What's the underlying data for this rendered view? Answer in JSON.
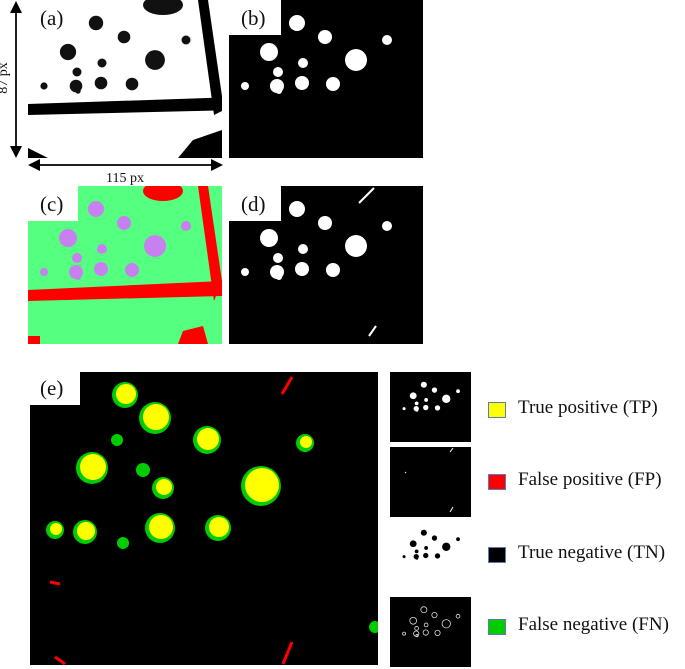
{
  "panels": {
    "a": {
      "label": "(a)"
    },
    "b": {
      "label": "(b)"
    },
    "c": {
      "label": "(c)"
    },
    "d": {
      "label": "(d)"
    },
    "e": {
      "label": "(e)"
    }
  },
  "dimensions": {
    "height": "87 px",
    "width": "115 px"
  },
  "colors": {
    "tp": "#ffff00",
    "fp": "#ff0000",
    "tn": "#000000",
    "fn": "#00cc00",
    "water_class": "#c87ff0",
    "land_class": "#55ff80"
  },
  "legend": [
    {
      "label": "True positive (TP)",
      "color": "#ffff00"
    },
    {
      "label": "False positive (FP)",
      "color": "#ff0000"
    },
    {
      "label": "True negative (TN)",
      "color": "#000000"
    },
    {
      "label": "False negative (FN)",
      "color": "#00cc00"
    }
  ]
}
